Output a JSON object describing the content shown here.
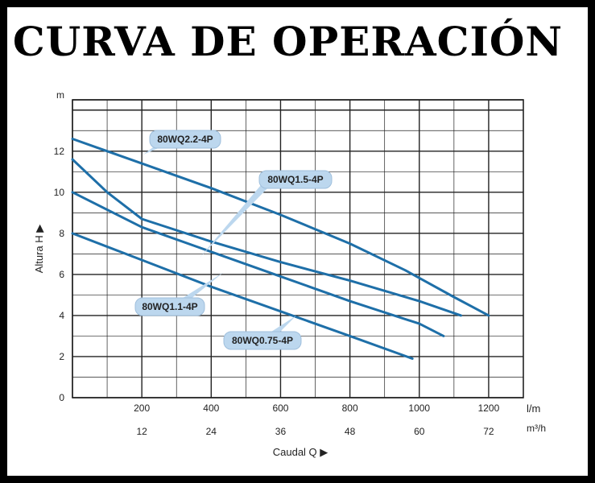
{
  "title": "CURVA DE OPERACIÓN",
  "colors": {
    "curve": "#1e6fa8",
    "label_bg": "#bcd7ee",
    "grid": "#222222"
  },
  "chart_data": {
    "type": "line",
    "title": "CURVA DE OPERACIÓN",
    "y_unit": "m",
    "ylabel_word": "Altura",
    "ylabel_symbol": "H",
    "xlabel_word": "Caudal",
    "xlabel_symbol": "Q",
    "x_unit_primary": "l/m",
    "x_unit_secondary": "m³/h",
    "y_ticks": [
      0,
      2,
      4,
      6,
      8,
      10,
      12
    ],
    "x_ticks_primary": [
      200,
      400,
      600,
      800,
      1000,
      1200
    ],
    "x_ticks_secondary": [
      12,
      24,
      36,
      48,
      60,
      72
    ],
    "xlim": [
      0,
      1300
    ],
    "ylim": [
      0,
      14.5
    ],
    "grid": true,
    "series": [
      {
        "name": "80WQ2.2-4P",
        "x": [
          0,
          200,
          400,
          600,
          800,
          960,
          1100,
          1200
        ],
        "y": [
          12.6,
          11.4,
          10.2,
          8.9,
          7.5,
          6.2,
          4.9,
          4.0
        ]
      },
      {
        "name": "80WQ1.5-4P",
        "x": [
          0,
          100,
          200,
          400,
          600,
          800,
          1000,
          1120
        ],
        "y": [
          11.6,
          10.0,
          8.7,
          7.6,
          6.6,
          5.7,
          4.7,
          4.0
        ]
      },
      {
        "name": "80WQ1.1-4P",
        "x": [
          0,
          200,
          400,
          600,
          800,
          1000,
          1070
        ],
        "y": [
          10.0,
          8.3,
          7.1,
          5.9,
          4.7,
          3.6,
          3.0
        ]
      },
      {
        "name": "80WQ0.75-4P",
        "x": [
          0,
          200,
          400,
          600,
          800,
          980
        ],
        "y": [
          8.0,
          6.7,
          5.4,
          4.2,
          3.0,
          1.9
        ]
      }
    ],
    "labels": [
      {
        "series": "80WQ2.2-4P",
        "text": "80WQ2.2-4P"
      },
      {
        "series": "80WQ1.5-4P",
        "text": "80WQ1.5-4P"
      },
      {
        "series": "80WQ1.1-4P",
        "text": "80WQ1.1-4P"
      },
      {
        "series": "80WQ0.75-4P",
        "text": "80WQ0.75-4P"
      }
    ]
  }
}
